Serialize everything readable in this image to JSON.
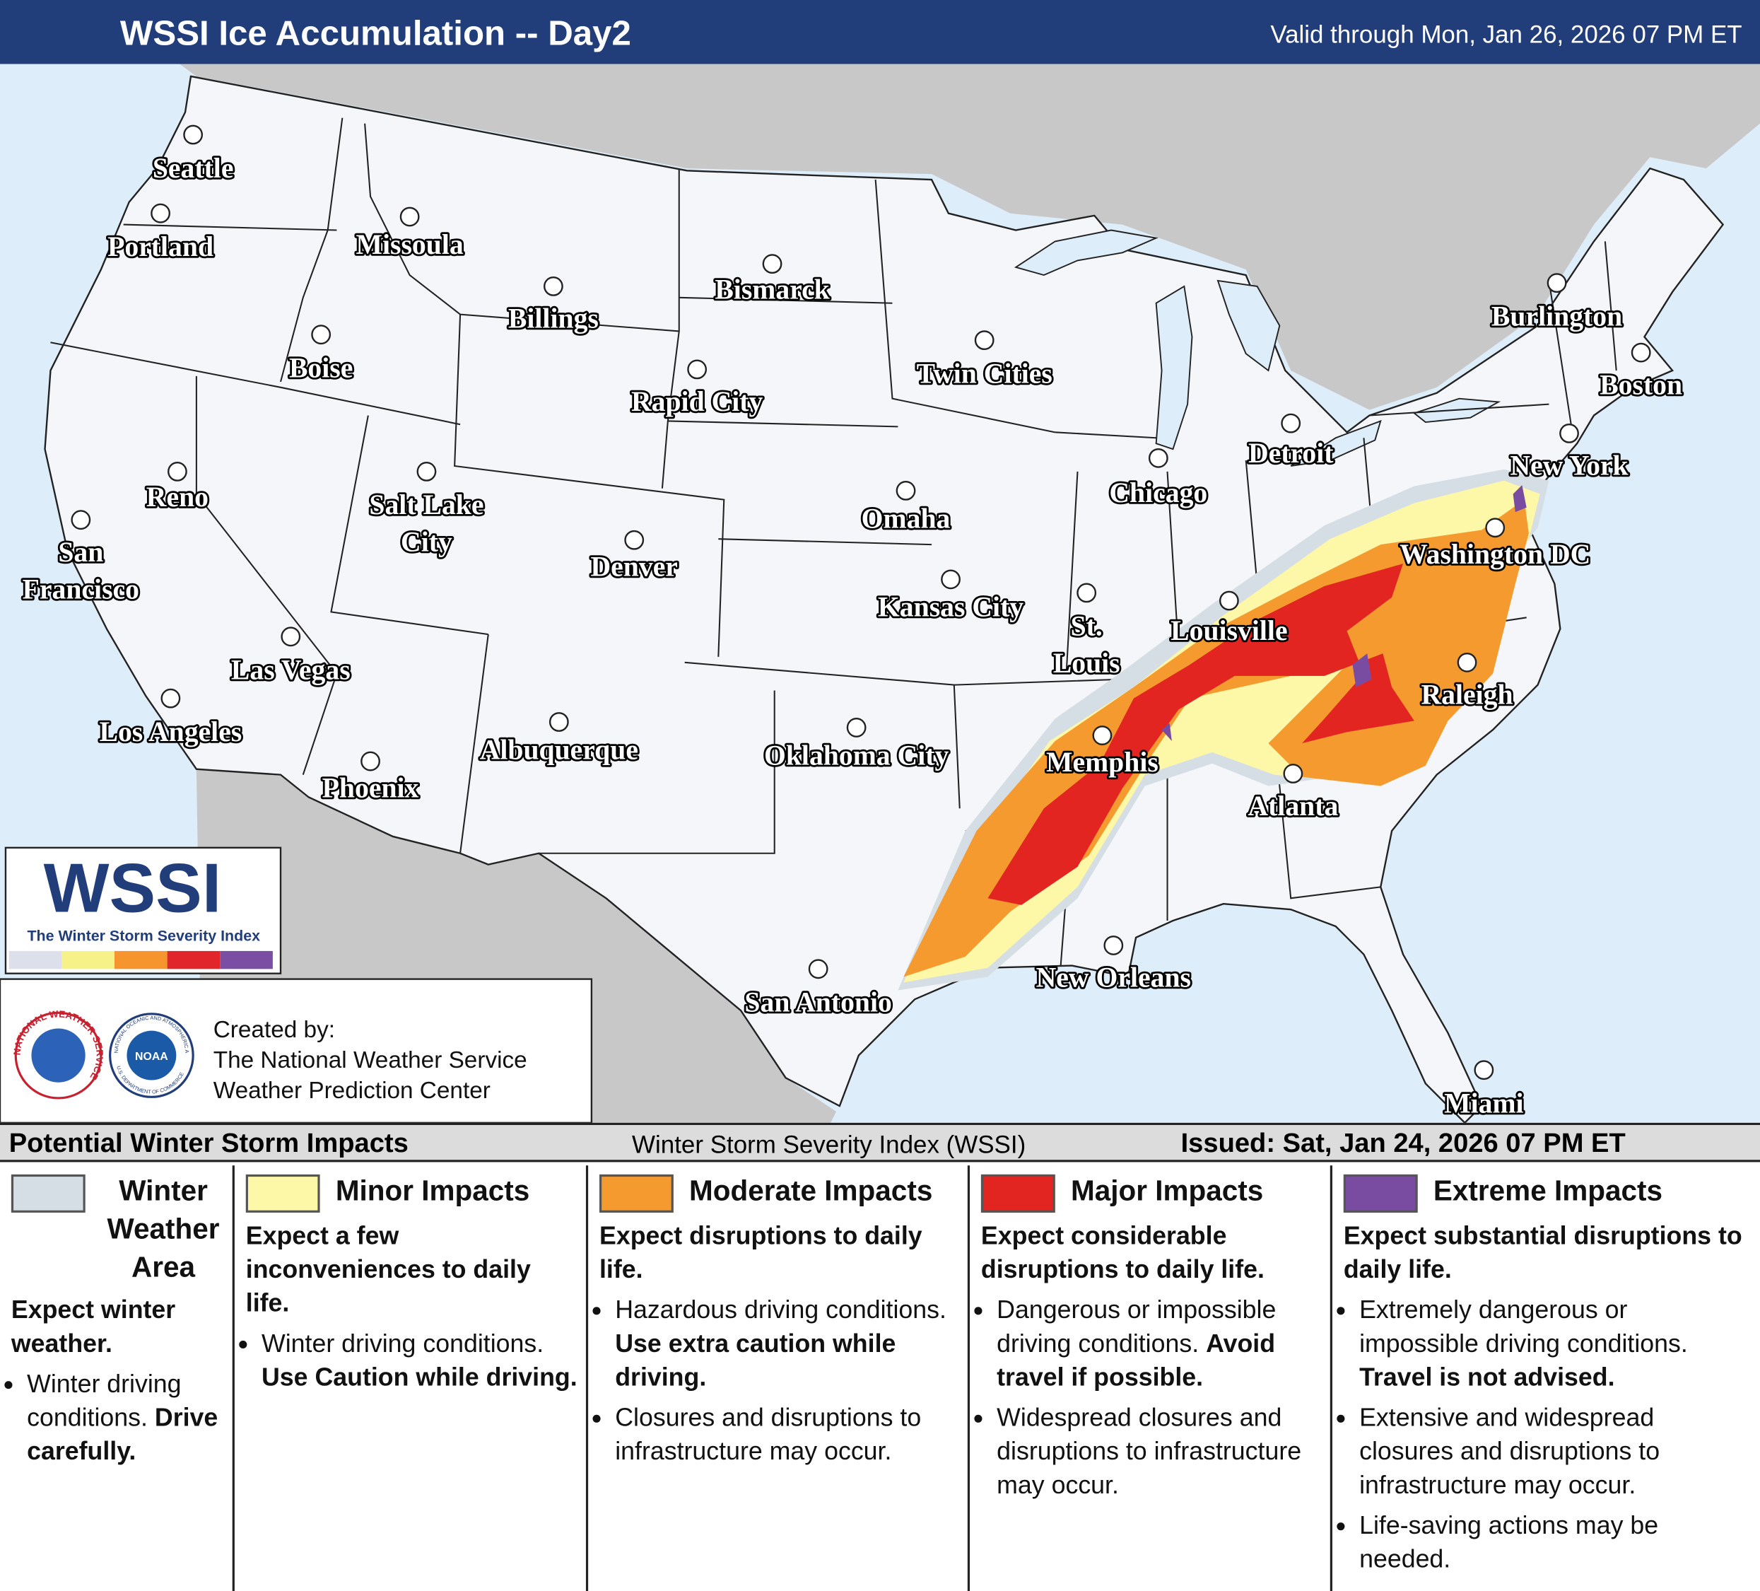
{
  "header": {
    "title": "WSSI Ice Accumulation -- Day2",
    "valid": "Valid through Mon, Jan 26, 2026 07 PM ET"
  },
  "cities": [
    [
      "Seattle"
    ],
    [
      "Portland"
    ],
    [
      "Missoula"
    ],
    [
      "Boise"
    ],
    [
      "Billings"
    ],
    [
      "Bismarck"
    ],
    [
      "Rapid City"
    ],
    [
      "Twin Cities"
    ],
    [
      "Reno"
    ],
    [
      "Salt Lake",
      "City"
    ],
    [
      "San",
      "Francisco"
    ],
    [
      "Denver"
    ],
    [
      "Omaha"
    ],
    [
      "Chicago"
    ],
    [
      "Detroit"
    ],
    [
      "Burlington"
    ],
    [
      "Boston"
    ],
    [
      "New York"
    ],
    [
      "Washington DC"
    ],
    [
      "Kansas City"
    ],
    [
      "St.",
      "Louis"
    ],
    [
      "Louisville"
    ],
    [
      "Las Vegas"
    ],
    [
      "Los Angeles"
    ],
    [
      "Phoenix"
    ],
    [
      "Albuquerque"
    ],
    [
      "Oklahoma City"
    ],
    [
      "Memphis"
    ],
    [
      "Raleigh"
    ],
    [
      "Atlanta"
    ],
    [
      "New Orleans"
    ],
    [
      "San Antonio"
    ],
    [
      "Miami"
    ]
  ],
  "logo": {
    "name": "WSSI",
    "subtitle": "The Winter Storm Severity Index"
  },
  "credits": {
    "nws_ring": "NATIONAL WEATHER SERVICE",
    "noaa": "NOAA",
    "noaa_ring": "NATIONAL OCEANIC AND ATMOSPHERIC ADMINISTRATION",
    "noaa_ring_bottom": "U.S. DEPARTMENT OF COMMERCE",
    "lines": [
      "Created by:",
      "The National Weather Service",
      "Weather Prediction Center"
    ]
  },
  "legend": {
    "title": "Potential Winter Storm Impacts",
    "index": "Winter Storm Severity Index (WSSI)",
    "issued": "Issued: Sat, Jan 24, 2026 07 PM ET",
    "columns": [
      {
        "title": "Winter Weather Area",
        "color": "#d6dee5",
        "summary": "Expect winter weather.",
        "bullets": [
          {
            "text": "Winter driving conditions.",
            "bold": "Drive carefully."
          }
        ]
      },
      {
        "title": "Minor Impacts",
        "color": "#fdf7a8",
        "summary": "Expect a few inconveniences to daily life.",
        "bullets": [
          {
            "text": "Winter driving conditions.",
            "bold": "Use Caution while driving."
          }
        ]
      },
      {
        "title": "Moderate Impacts",
        "color": "#f59a2f",
        "summary": "Expect disruptions to daily life.",
        "bullets": [
          {
            "text": "Hazardous driving conditions.",
            "bold": "Use extra caution while driving."
          },
          {
            "text": "Closures and disruptions to infrastructure may occur."
          }
        ]
      },
      {
        "title": "Major Impacts",
        "color": "#e32521",
        "summary": "Expect considerable disruptions to daily life.",
        "bullets": [
          {
            "text": "Dangerous or impossible driving conditions.",
            "bold": "Avoid travel if possible."
          },
          {
            "text": "Widespread closures and disruptions to infrastructure may occur."
          }
        ]
      },
      {
        "title": "Extreme Impacts",
        "color": "#7a4ca1",
        "summary": "Expect substantial disruptions to daily life.",
        "bullets": [
          {
            "text": "Extremely dangerous or impossible driving conditions.",
            "bold": "Travel is not advised."
          },
          {
            "text": "Extensive and widespread closures and disruptions to infrastructure may occur."
          },
          {
            "text": "Life-saving actions may be needed."
          }
        ]
      }
    ]
  }
}
